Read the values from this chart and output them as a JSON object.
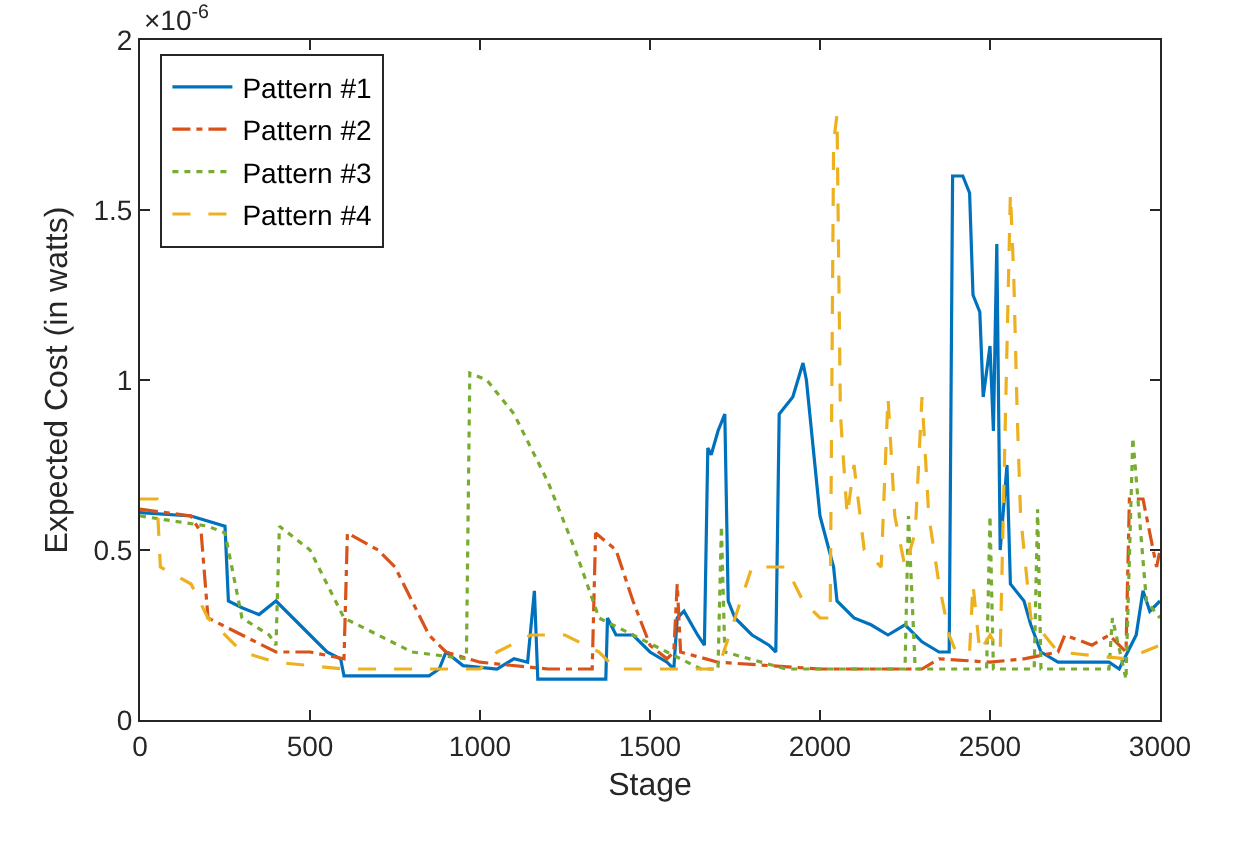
{
  "chart_data": {
    "type": "line",
    "xlabel": "Stage",
    "ylabel": "Expected Cost (in watts)",
    "annotations": [
      "×10$^{-6}$"
    ],
    "xlim": [
      0,
      3000
    ],
    "xticks": [
      0,
      500,
      1000,
      1500,
      2000,
      2500,
      3000
    ],
    "ylim": [
      0,
      2
    ],
    "yticks": [
      0,
      0.5,
      1,
      1.5,
      2
    ],
    "grid": false,
    "legend": "top left",
    "series": [
      {
        "name": "Pattern #1",
        "color": "#0072bd",
        "line_style": "solid",
        "x": [
          0,
          150,
          250,
          260,
          300,
          350,
          400,
          450,
          500,
          550,
          590,
          600,
          850,
          880,
          900,
          950,
          1050,
          1100,
          1140,
          1160,
          1170,
          1370,
          1375,
          1400,
          1450,
          1500,
          1550,
          1570,
          1580,
          1600,
          1640,
          1660,
          1670,
          1680,
          1700,
          1720,
          1730,
          1750,
          1800,
          1850,
          1870,
          1880,
          1920,
          1950,
          1960,
          1980,
          2000,
          2040,
          2050,
          2100,
          2150,
          2200,
          2250,
          2300,
          2350,
          2380,
          2390,
          2420,
          2440,
          2450,
          2470,
          2480,
          2500,
          2510,
          2520,
          2530,
          2550,
          2560,
          2600,
          2620,
          2650,
          2700,
          2850,
          2880,
          2930,
          2950,
          2970,
          3000
        ],
        "values": [
          0.61,
          0.6,
          0.57,
          0.35,
          0.33,
          0.31,
          0.35,
          0.3,
          0.25,
          0.2,
          0.18,
          0.13,
          0.13,
          0.15,
          0.2,
          0.16,
          0.15,
          0.18,
          0.17,
          0.38,
          0.12,
          0.12,
          0.3,
          0.25,
          0.25,
          0.2,
          0.17,
          0.15,
          0.3,
          0.32,
          0.25,
          0.22,
          0.8,
          0.78,
          0.85,
          0.9,
          0.35,
          0.3,
          0.25,
          0.22,
          0.2,
          0.9,
          0.95,
          1.05,
          1.0,
          0.8,
          0.6,
          0.45,
          0.35,
          0.3,
          0.28,
          0.25,
          0.28,
          0.23,
          0.2,
          0.2,
          1.6,
          1.6,
          1.55,
          1.25,
          1.2,
          0.95,
          1.1,
          0.85,
          1.4,
          0.5,
          0.75,
          0.4,
          0.35,
          0.28,
          0.2,
          0.17,
          0.17,
          0.15,
          0.25,
          0.38,
          0.32,
          0.35
        ]
      },
      {
        "name": "Pattern #2",
        "color": "#d95319",
        "line_style": "dashdot",
        "x": [
          0,
          150,
          180,
          200,
          300,
          400,
          500,
          600,
          610,
          700,
          750,
          800,
          850,
          900,
          1000,
          1200,
          1330,
          1340,
          1400,
          1450,
          1500,
          1550,
          1570,
          1580,
          1590,
          1700,
          2000,
          2300,
          2350,
          2500,
          2600,
          2700,
          2720,
          2800,
          2850,
          2900,
          2910,
          2950,
          2990,
          3000
        ],
        "values": [
          0.62,
          0.6,
          0.55,
          0.3,
          0.25,
          0.2,
          0.2,
          0.18,
          0.55,
          0.5,
          0.45,
          0.35,
          0.25,
          0.2,
          0.17,
          0.15,
          0.15,
          0.55,
          0.5,
          0.35,
          0.22,
          0.18,
          0.2,
          0.4,
          0.2,
          0.17,
          0.15,
          0.15,
          0.18,
          0.17,
          0.18,
          0.2,
          0.25,
          0.22,
          0.25,
          0.2,
          0.65,
          0.65,
          0.45,
          0.5
        ]
      },
      {
        "name": "Pattern #3",
        "color": "#77ac30",
        "line_style": "dotted",
        "x": [
          0,
          200,
          250,
          300,
          380,
          400,
          410,
          500,
          550,
          600,
          700,
          800,
          960,
          970,
          1020,
          1100,
          1200,
          1280,
          1350,
          1450,
          1550,
          1650,
          1700,
          1710,
          1720,
          1900,
          2250,
          2260,
          2280,
          2490,
          2500,
          2510,
          2630,
          2640,
          2650,
          2850,
          2860,
          2900,
          2920,
          2960,
          3000
        ],
        "values": [
          0.6,
          0.57,
          0.55,
          0.3,
          0.25,
          0.22,
          0.57,
          0.5,
          0.4,
          0.3,
          0.25,
          0.2,
          0.18,
          1.02,
          1.0,
          0.9,
          0.7,
          0.5,
          0.3,
          0.25,
          0.2,
          0.15,
          0.15,
          0.57,
          0.2,
          0.15,
          0.15,
          0.6,
          0.15,
          0.15,
          0.6,
          0.15,
          0.15,
          0.62,
          0.15,
          0.15,
          0.3,
          0.12,
          0.83,
          0.35,
          0.3
        ]
      },
      {
        "name": "Pattern #4",
        "color": "#edb120",
        "line_style": "dashed",
        "x": [
          0,
          50,
          60,
          150,
          200,
          300,
          400,
          600,
          1000,
          1050,
          1150,
          1250,
          1350,
          1400,
          1700,
          1800,
          1900,
          1950,
          2000,
          2030,
          2040,
          2050,
          2060,
          2080,
          2100,
          2130,
          2180,
          2200,
          2220,
          2250,
          2280,
          2300,
          2320,
          2350,
          2380,
          2400,
          2440,
          2450,
          2470,
          2500,
          2530,
          2540,
          2560,
          2570,
          2580,
          2590,
          2620,
          2700,
          2900,
          3000
        ],
        "values": [
          0.65,
          0.65,
          0.45,
          0.4,
          0.3,
          0.2,
          0.17,
          0.15,
          0.15,
          0.2,
          0.25,
          0.25,
          0.2,
          0.15,
          0.15,
          0.45,
          0.45,
          0.35,
          0.3,
          0.3,
          1.7,
          1.78,
          0.9,
          0.6,
          0.75,
          0.5,
          0.45,
          0.95,
          0.6,
          0.45,
          0.55,
          0.95,
          0.6,
          0.4,
          0.25,
          0.2,
          0.2,
          0.4,
          0.2,
          0.25,
          0.2,
          0.65,
          1.55,
          1.3,
          0.9,
          0.6,
          0.3,
          0.2,
          0.18,
          0.22
        ]
      }
    ]
  }
}
